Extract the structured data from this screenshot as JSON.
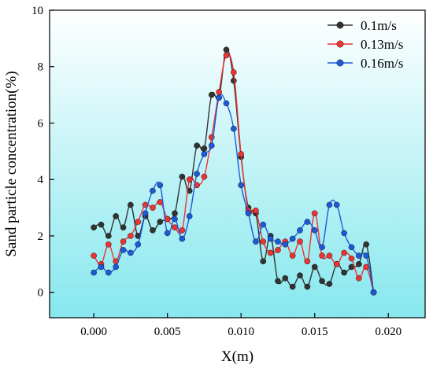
{
  "chart_data": {
    "type": "line",
    "title": "",
    "xlabel": "X(m)",
    "ylabel": "Sand particle concentration(%)",
    "xlim": [
      -0.003,
      0.0225
    ],
    "ylim": [
      -0.9,
      10
    ],
    "xticks": [
      "0.000",
      "0.005",
      "0.010",
      "0.015",
      "0.020"
    ],
    "xtick_values": [
      0,
      0.005,
      0.01,
      0.015,
      0.02
    ],
    "yticks": [
      "0",
      "2",
      "4",
      "6",
      "8",
      "10"
    ],
    "ytick_values": [
      0,
      2,
      4,
      6,
      8,
      10
    ],
    "grid": false,
    "legend_position": "top-right",
    "background_gradient": [
      "#ffffff",
      "#86e8ee"
    ],
    "series": [
      {
        "name": "0.1m/s",
        "color": "#333333",
        "x": [
          0,
          0.0005,
          0.001,
          0.0015,
          0.002,
          0.0025,
          0.003,
          0.0035,
          0.004,
          0.0045,
          0.005,
          0.0055,
          0.006,
          0.0065,
          0.007,
          0.0075,
          0.008,
          0.0085,
          0.009,
          0.0095,
          0.01,
          0.0105,
          0.011,
          0.0115,
          0.012,
          0.0125,
          0.013,
          0.0135,
          0.014,
          0.0145,
          0.015,
          0.0155,
          0.016,
          0.0165,
          0.017,
          0.0175,
          0.018,
          0.0185,
          0.019
        ],
        "y": [
          2.3,
          2.4,
          2.0,
          2.7,
          2.3,
          3.1,
          2.0,
          2.7,
          2.2,
          2.5,
          2.6,
          2.8,
          4.1,
          3.6,
          5.2,
          5.1,
          7.0,
          6.9,
          8.6,
          7.5,
          4.8,
          3.0,
          2.8,
          1.1,
          2.0,
          0.4,
          0.5,
          0.2,
          0.6,
          0.2,
          0.9,
          0.4,
          0.3,
          1.0,
          0.7,
          0.9,
          1.0,
          1.7,
          0.0
        ]
      },
      {
        "name": "0.13m/s",
        "color": "#ee3333",
        "x": [
          0,
          0.0005,
          0.001,
          0.0015,
          0.002,
          0.0025,
          0.003,
          0.0035,
          0.004,
          0.0045,
          0.005,
          0.0055,
          0.006,
          0.0065,
          0.007,
          0.0075,
          0.008,
          0.0085,
          0.009,
          0.0095,
          0.01,
          0.0105,
          0.011,
          0.0115,
          0.012,
          0.0125,
          0.013,
          0.0135,
          0.014,
          0.0145,
          0.015,
          0.0155,
          0.016,
          0.0165,
          0.017,
          0.0175,
          0.018,
          0.0185,
          0.019
        ],
        "y": [
          1.3,
          1.0,
          1.7,
          1.1,
          1.8,
          2.0,
          2.5,
          3.1,
          3.0,
          3.2,
          2.6,
          2.3,
          2.2,
          4.0,
          3.8,
          4.1,
          5.5,
          7.1,
          8.4,
          7.8,
          4.9,
          2.9,
          2.9,
          1.8,
          1.4,
          1.5,
          1.8,
          1.3,
          1.8,
          1.1,
          2.8,
          1.3,
          1.3,
          1.0,
          1.4,
          1.2,
          0.5,
          0.9,
          0.0
        ]
      },
      {
        "name": "0.16m/s",
        "color": "#1e5ad8",
        "x": [
          0,
          0.0005,
          0.001,
          0.0015,
          0.002,
          0.0025,
          0.003,
          0.0035,
          0.004,
          0.0045,
          0.005,
          0.0055,
          0.006,
          0.0065,
          0.007,
          0.0075,
          0.008,
          0.0085,
          0.009,
          0.0095,
          0.01,
          0.0105,
          0.011,
          0.0115,
          0.012,
          0.0125,
          0.013,
          0.0135,
          0.014,
          0.0145,
          0.015,
          0.0155,
          0.016,
          0.0165,
          0.017,
          0.0175,
          0.018,
          0.0185,
          0.019
        ],
        "y": [
          0.7,
          0.9,
          0.7,
          0.9,
          1.5,
          1.4,
          1.7,
          2.8,
          3.6,
          3.8,
          2.1,
          2.6,
          1.9,
          2.7,
          4.2,
          4.9,
          5.2,
          6.9,
          6.7,
          5.8,
          3.8,
          2.8,
          1.8,
          2.4,
          1.9,
          1.8,
          1.7,
          1.9,
          2.2,
          2.5,
          2.2,
          1.6,
          3.1,
          3.1,
          2.1,
          1.6,
          1.3,
          1.3,
          0.0
        ]
      }
    ]
  }
}
